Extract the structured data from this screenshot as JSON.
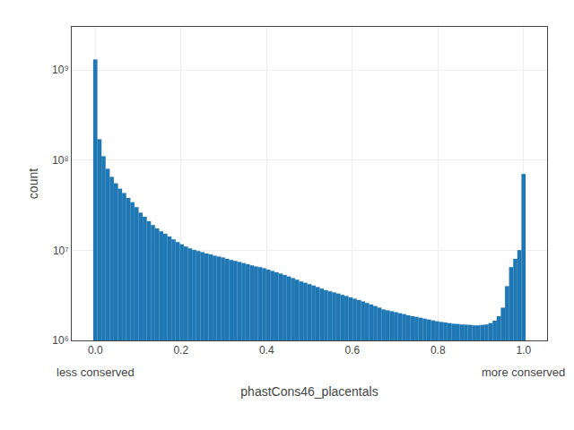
{
  "chart_data": {
    "type": "bar",
    "xlabel": "phastCons46_placentals",
    "ylabel": "count",
    "color": "#1f77b4",
    "log": "y",
    "grid": true,
    "xlim": [
      -0.055,
      1.055
    ],
    "ylim": [
      1000000,
      3000000000
    ],
    "xticks": [
      {
        "value": 0.0,
        "label": "0.0"
      },
      0.2,
      0.4,
      0.6,
      0.8,
      {
        "value": 1.0,
        "label": "1.0"
      }
    ],
    "yticks": [
      {
        "value": 1000000,
        "label": "10⁶"
      },
      {
        "value": 10000000,
        "label": "10⁷"
      },
      {
        "value": 100000000,
        "label": "10⁸"
      },
      {
        "value": 1000000000,
        "label": "10⁹"
      }
    ],
    "annotations": [
      {
        "text": "less conserved",
        "x": 0.0
      },
      {
        "text": "more conserved",
        "x": 1.0
      }
    ],
    "x": [
      0,
      0.009615,
      0.019231,
      0.028846,
      0.038462,
      0.048077,
      0.057692,
      0.067308,
      0.076923,
      0.086538,
      0.096154,
      0.105769,
      0.115385,
      0.125,
      0.134615,
      0.144231,
      0.153846,
      0.163462,
      0.173077,
      0.182692,
      0.192308,
      0.201923,
      0.211538,
      0.221154,
      0.230769,
      0.240385,
      0.25,
      0.259615,
      0.269231,
      0.278846,
      0.288462,
      0.298077,
      0.307692,
      0.317308,
      0.326923,
      0.336538,
      0.346154,
      0.355769,
      0.365385,
      0.375,
      0.384615,
      0.394231,
      0.403846,
      0.413462,
      0.423077,
      0.432692,
      0.442308,
      0.451923,
      0.461538,
      0.471154,
      0.480769,
      0.490385,
      0.5,
      0.509615,
      0.519231,
      0.528846,
      0.538462,
      0.548077,
      0.557692,
      0.567308,
      0.576923,
      0.586538,
      0.596154,
      0.605769,
      0.615385,
      0.625,
      0.634615,
      0.644231,
      0.653846,
      0.663462,
      0.673077,
      0.682692,
      0.692308,
      0.701923,
      0.711538,
      0.721154,
      0.730769,
      0.740385,
      0.75,
      0.759615,
      0.769231,
      0.778846,
      0.788462,
      0.798077,
      0.807692,
      0.817308,
      0.826923,
      0.836538,
      0.846154,
      0.855769,
      0.865385,
      0.875,
      0.884615,
      0.894231,
      0.903846,
      0.913462,
      0.923077,
      0.932692,
      0.942308,
      0.951923,
      0.961538,
      0.971154,
      0.980769,
      0.990385,
      1
    ],
    "values": [
      1300000000.0,
      170000000.0,
      110000000.0,
      80000000.0,
      65000000.0,
      55000000.0,
      48000000.0,
      43000000.0,
      38000000.0,
      34000000.0,
      30000000.0,
      26000000.0,
      23500000.0,
      21000000.0,
      19000000.0,
      17500000.0,
      16200000.0,
      15200000.0,
      14200000.0,
      13200000.0,
      12300000.0,
      11600000.0,
      11000000.0,
      10500000.0,
      10100000.0,
      9800000.0,
      9500000.0,
      9200000.0,
      9000000.0,
      8700000.0,
      8500000.0,
      8300000.0,
      8000000.0,
      7800000.0,
      7600000.0,
      7400000.0,
      7200000.0,
      7000000.0,
      6800000.0,
      6600000.0,
      6500000.0,
      6300000.0,
      6100000.0,
      5900000.0,
      5700000.0,
      5500000.0,
      5300000.0,
      5100000.0,
      4900000.0,
      4700000.0,
      4500000.0,
      4350000.0,
      4200000.0,
      4050000.0,
      3900000.0,
      3750000.0,
      3600000.0,
      3500000.0,
      3400000.0,
      3300000.0,
      3200000.0,
      3100000.0,
      3000000.0,
      2900000.0,
      2800000.0,
      2700000.0,
      2600000.0,
      2500000.0,
      2400000.0,
      2300000.0,
      2200000.0,
      2150000.0,
      2100000.0,
      2050000.0,
      2000000.0,
      1950000.0,
      1900000.0,
      1850000.0,
      1820000.0,
      1780000.0,
      1740000.0,
      1700000.0,
      1660000.0,
      1630000.0,
      1600000.0,
      1580000.0,
      1550000.0,
      1530000.0,
      1520000.0,
      1500000.0,
      1490000.0,
      1480000.0,
      1470000.0,
      1470000.0,
      1480000.0,
      1500000.0,
      1550000.0,
      1650000.0,
      1850000.0,
      2300000.0,
      4000000.0,
      6500000.0,
      8000000.0,
      10000000.0,
      70000000.0
    ]
  }
}
